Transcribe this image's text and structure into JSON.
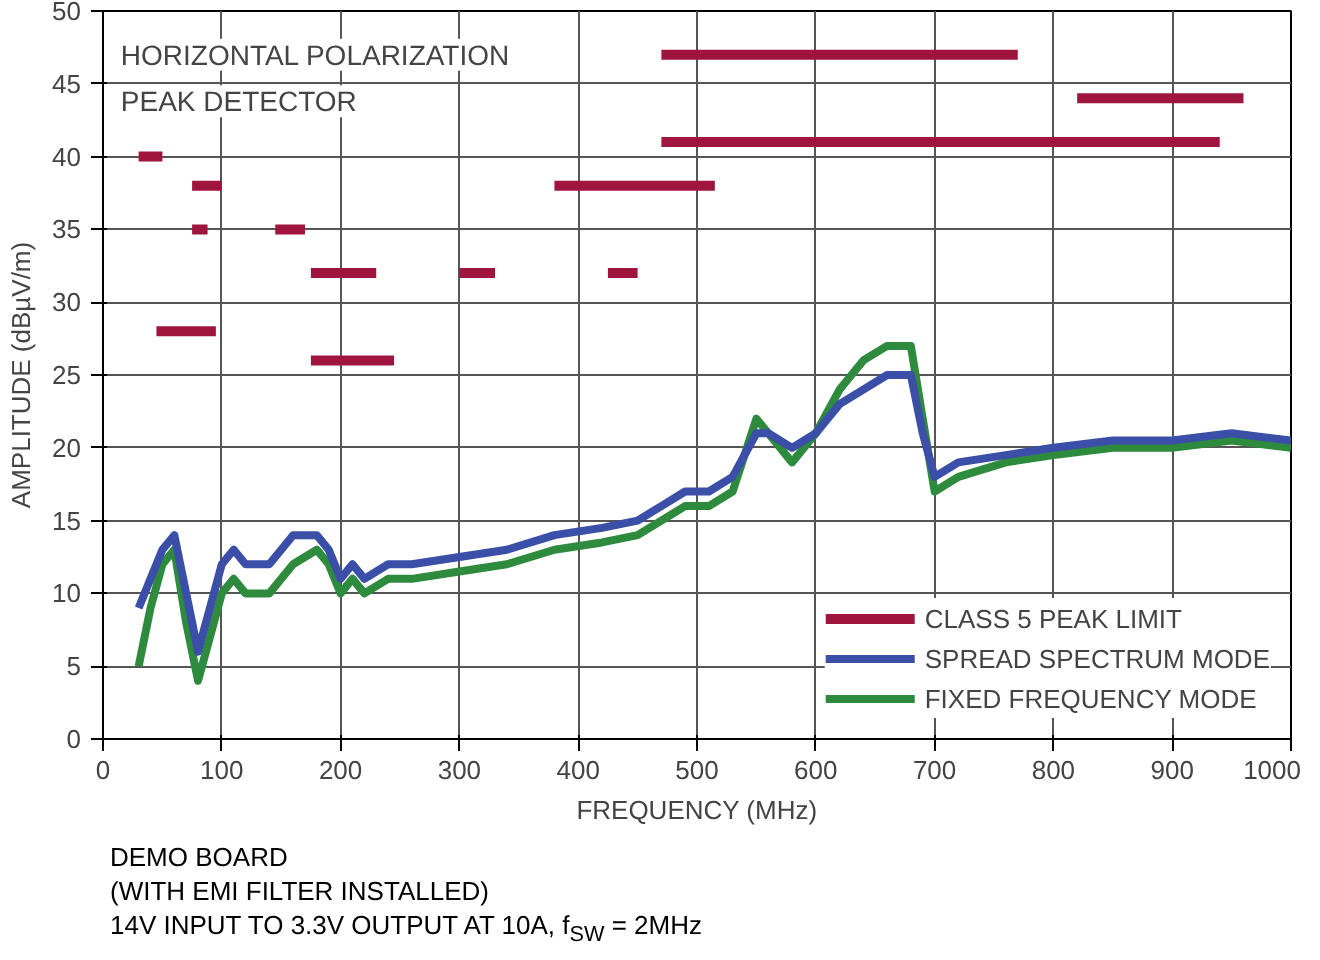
{
  "chart_data": {
    "type": "line",
    "xlabel": "FREQUENCY (MHz)",
    "ylabel": "AMPLITUDE (dBµV/m)",
    "xlim": [
      0,
      1000
    ],
    "xticks": [
      0,
      100,
      200,
      300,
      400,
      500,
      600,
      700,
      800,
      900,
      1000
    ],
    "ylim": [
      0,
      50
    ],
    "yticks": [
      0,
      5,
      10,
      15,
      20,
      25,
      30,
      35,
      40,
      45,
      50
    ],
    "grid": true,
    "legend": "bottom right",
    "line_style": "solid",
    "annotations": [
      "HORIZONTAL POLARIZATION",
      "PEAK DETECTOR",
      "DEMO BOARD",
      "(WITH EMI FILTER INSTALLED)",
      "14V INPUT TO 3.3V OUTPUT AT 10A, f$_{SW}$ = 2MHz"
    ],
    "series": [
      {
        "name": "FIXED FREQUENCY MODE",
        "color": "#2e8b3e",
        "x": [
          30,
          40,
          50,
          60,
          70,
          80,
          90,
          100,
          110,
          120,
          140,
          160,
          180,
          190,
          200,
          210,
          220,
          240,
          260,
          300,
          340,
          380,
          420,
          450,
          470,
          490,
          510,
          530,
          550,
          560,
          580,
          600,
          620,
          640,
          660,
          680,
          690,
          700,
          720,
          760,
          800,
          850,
          900,
          950,
          1000
        ],
        "values": [
          5,
          9,
          12,
          13,
          8,
          4,
          7,
          10,
          11,
          10,
          10,
          12,
          13,
          12,
          10,
          11,
          10,
          11,
          11,
          11.5,
          12,
          13,
          13.5,
          14,
          15,
          16,
          16,
          17,
          22,
          21,
          19,
          21,
          24,
          26,
          27,
          27,
          22,
          17,
          18,
          19,
          19.5,
          20,
          20,
          20.5,
          20
        ]
      },
      {
        "name": "SPREAD SPECTRUM MODE",
        "color": "#3b4fa8",
        "x": [
          30,
          40,
          50,
          60,
          70,
          80,
          90,
          100,
          110,
          120,
          140,
          160,
          180,
          190,
          200,
          210,
          220,
          240,
          260,
          300,
          340,
          380,
          420,
          450,
          470,
          490,
          510,
          530,
          550,
          560,
          580,
          600,
          620,
          640,
          660,
          680,
          690,
          700,
          720,
          760,
          800,
          850,
          900,
          950,
          1000
        ],
        "values": [
          9,
          11,
          13,
          14,
          10,
          6,
          9,
          12,
          13,
          12,
          12,
          14,
          14,
          13,
          11,
          12,
          11,
          12,
          12,
          12.5,
          13,
          14,
          14.5,
          15,
          16,
          17,
          17,
          18,
          21,
          21,
          20,
          21,
          23,
          24,
          25,
          25,
          21,
          18,
          19,
          19.5,
          20,
          20.5,
          20.5,
          21,
          20.5
        ]
      },
      {
        "name": "CLASS 5 PEAK LIMIT",
        "color": "#a0153e",
        "x": [
          30,
          50,
          null,
          75,
          100,
          null,
          75,
          88,
          null,
          145,
          170,
          null,
          175,
          230,
          null,
          300,
          330,
          null,
          425,
          450,
          null,
          45,
          95,
          null,
          175,
          245,
          null,
          380,
          515,
          null,
          470,
          770,
          null,
          820,
          960,
          null,
          470,
          940
        ],
        "values": [
          40,
          40,
          null,
          38,
          38,
          null,
          35,
          35,
          null,
          35,
          35,
          null,
          32,
          32,
          null,
          32,
          32,
          null,
          32,
          32,
          null,
          28,
          28,
          null,
          26,
          26,
          null,
          38,
          38,
          null,
          47,
          47,
          null,
          44,
          44,
          null,
          41,
          41
        ]
      }
    ]
  }
}
